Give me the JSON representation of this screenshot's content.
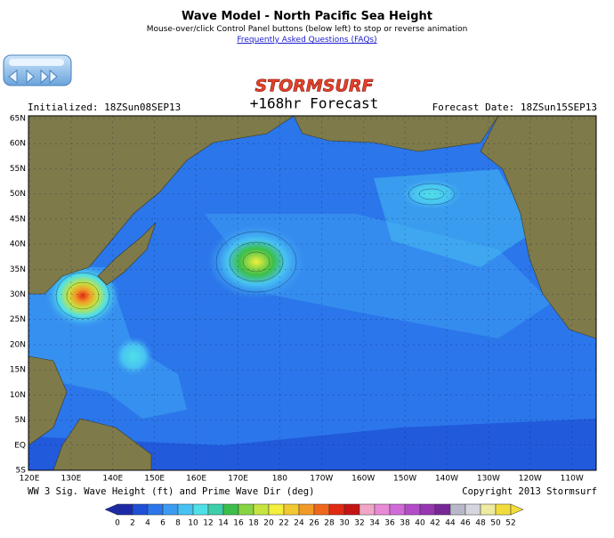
{
  "header": {
    "title": "Wave Model - North Pacific Sea Height",
    "subtitle": "Mouse-over/click Control Panel buttons (below left) to stop or reverse animation",
    "faq_link": "Frequently Asked Questions (FAQs)"
  },
  "logo": "STORMSURF",
  "info": {
    "initialized": "Initialized: 18ZSun08SEP13",
    "forecast": "+168hr Forecast",
    "forecast_date": "Forecast Date: 18ZSun15SEP13"
  },
  "map": {
    "lat_labels": [
      "65N",
      "60N",
      "55N",
      "50N",
      "45N",
      "40N",
      "35N",
      "30N",
      "25N",
      "20N",
      "15N",
      "10N",
      "5N",
      "EQ",
      "5S"
    ],
    "lon_labels": [
      "120E",
      "130E",
      "140E",
      "150E",
      "160E",
      "170E",
      "180",
      "170W",
      "160W",
      "150W",
      "140W",
      "130W",
      "120W",
      "110W"
    ]
  },
  "footer": {
    "caption": "WW 3 Sig. Wave Height (ft) and Prime Wave Dir (deg)",
    "copyright": "Copyright 2013 Stormsurf"
  },
  "colorbar": {
    "levels": [
      0,
      2,
      4,
      6,
      8,
      10,
      12,
      14,
      16,
      18,
      20,
      22,
      24,
      26,
      28,
      30,
      32,
      34,
      36,
      38,
      40,
      42,
      44,
      46,
      48,
      50,
      52
    ],
    "colors": [
      "#1c2aa8",
      "#1f4fd6",
      "#2b76ea",
      "#3c9bf2",
      "#48c2f2",
      "#50e0e8",
      "#3ccfa8",
      "#3cbf4a",
      "#86d444",
      "#c6e440",
      "#f2f03c",
      "#f2c832",
      "#f29a28",
      "#f0661a",
      "#e02a14",
      "#c41414",
      "#f2a6c6",
      "#e88ad6",
      "#d06ad6",
      "#b44cc8",
      "#9636b0",
      "#782896",
      "#b8b8c8",
      "#d6d6de",
      "#eeeaa0",
      "#f2dc3c"
    ]
  }
}
